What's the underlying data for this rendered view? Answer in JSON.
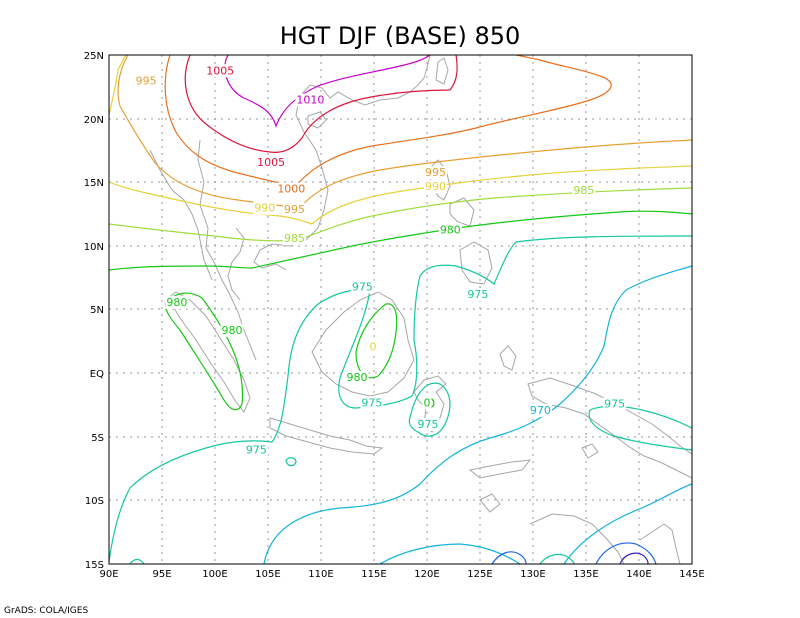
{
  "title": "HGT DJF (BASE) 850",
  "credit": "GrADS: COLA/IGES",
  "map": {
    "lon_range": [
      90,
      145
    ],
    "lat_range": [
      -15,
      25
    ],
    "x_ticks": [
      "90E",
      "95E",
      "100E",
      "105E",
      "110E",
      "115E",
      "120E",
      "125E",
      "130E",
      "135E",
      "140E",
      "145E"
    ],
    "y_ticks": [
      "15S",
      "10S",
      "5S",
      "EQ",
      "5N",
      "10N",
      "15N",
      "20N",
      "25N"
    ],
    "grid": "dotted",
    "colors": {
      "c1010": "#c800c8",
      "c1005": "#dc143c",
      "c1000": "#e6701e",
      "c995": "#e6a032",
      "c990": "#e6d23c",
      "c985": "#a0dc3c",
      "c980": "#14c814",
      "c975": "#14c8a0",
      "c970": "#14b4dc",
      "c965": "#1e64e6",
      "c960": "#3c1ec8",
      "coast": "#a6a6a6"
    }
  },
  "contour_labels": [
    {
      "text": "1005",
      "color": "c1005",
      "lon": 100.5,
      "lat": 23.8
    },
    {
      "text": "995",
      "color": "c995",
      "lon": 93.5,
      "lat": 23.0
    },
    {
      "text": "1010",
      "color": "c1010",
      "lon": 109.0,
      "lat": 21.5
    },
    {
      "text": "1005",
      "color": "c1005",
      "lon": 105.3,
      "lat": 16.6
    },
    {
      "text": "1000",
      "color": "c1000",
      "lon": 107.2,
      "lat": 14.5
    },
    {
      "text": "995",
      "color": "c995",
      "lon": 120.8,
      "lat": 15.8
    },
    {
      "text": "990",
      "color": "c990",
      "lon": 120.8,
      "lat": 14.7
    },
    {
      "text": "985",
      "color": "c985",
      "lon": 134.8,
      "lat": 14.4
    },
    {
      "text": "990",
      "color": "c990",
      "lon": 104.7,
      "lat": 13.0
    },
    {
      "text": "995",
      "color": "c995",
      "lon": 107.5,
      "lat": 12.9
    },
    {
      "text": "985",
      "color": "c985",
      "lon": 107.5,
      "lat": 10.6
    },
    {
      "text": "980",
      "color": "c980",
      "lon": 122.2,
      "lat": 11.3
    },
    {
      "text": "975",
      "color": "c975",
      "lon": 113.9,
      "lat": 6.8
    },
    {
      "text": "975",
      "color": "c975",
      "lon": 124.8,
      "lat": 6.2
    },
    {
      "text": "980",
      "color": "c980",
      "lon": 96.4,
      "lat": 5.6
    },
    {
      "text": "980",
      "color": "c980",
      "lon": 101.6,
      "lat": 3.4
    },
    {
      "text": "0",
      "color": "c990",
      "lon": 114.9,
      "lat": 2.1
    },
    {
      "text": "980",
      "color": "c980",
      "lon": 113.4,
      "lat": -0.3
    },
    {
      "text": "975",
      "color": "c975",
      "lon": 114.8,
      "lat": -2.3
    },
    {
      "text": "0",
      "color": "c980",
      "lon": 120.0,
      "lat": -2.3
    },
    {
      "text": "970",
      "color": "c970",
      "lon": 130.7,
      "lat": -2.9
    },
    {
      "text": "975",
      "color": "c975",
      "lon": 137.7,
      "lat": -2.4
    },
    {
      "text": "975",
      "color": "c975",
      "lon": 120.1,
      "lat": -4.0
    },
    {
      "text": "975",
      "color": "c975",
      "lon": 103.9,
      "lat": -6.0
    }
  ]
}
